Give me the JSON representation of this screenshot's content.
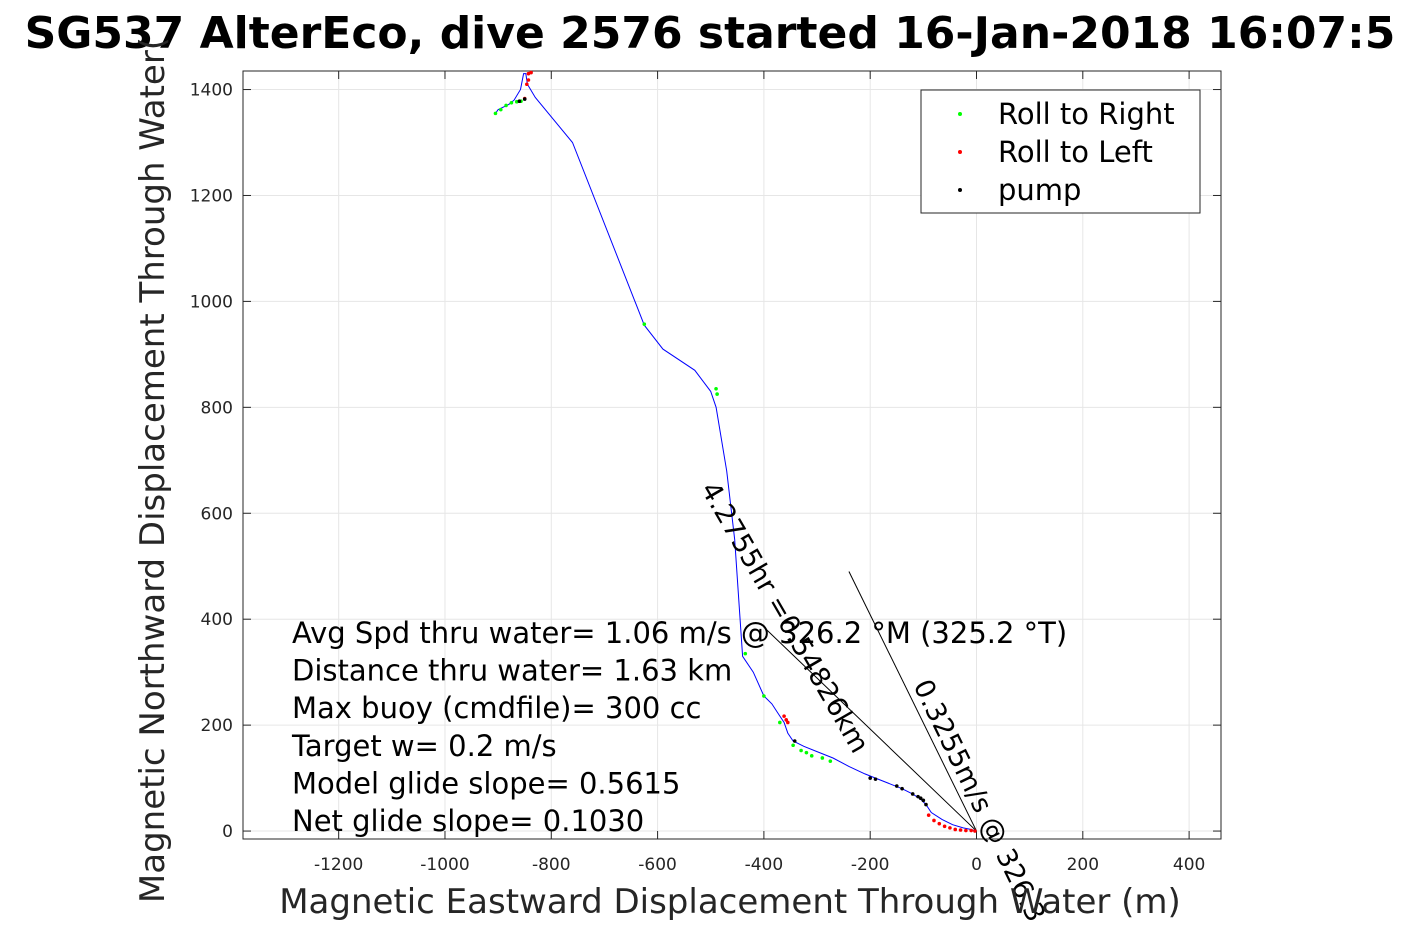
{
  "chart_data": {
    "type": "scatter",
    "title": "SG537 AlterEco, dive 2576 started 16-Jan-2018 16:07:5",
    "xlabel": "Magnetic Eastward Displacement Through Water (m)",
    "ylabel": "Magnetic Northward Displacement Through Water(",
    "xlim": [
      -1380,
      460
    ],
    "ylim": [
      -15,
      1435
    ],
    "xticks": [
      -1200,
      -1000,
      -800,
      -600,
      -400,
      -200,
      0,
      200,
      400
    ],
    "yticks": [
      0,
      200,
      400,
      600,
      800,
      1000,
      1200,
      1400
    ],
    "grid": true,
    "legend": {
      "placement": "top-right",
      "entries": [
        {
          "label": "Roll to Right",
          "color": "#00ff00"
        },
        {
          "label": "Roll to Left",
          "color": "#ff0000"
        },
        {
          "label": "pump",
          "color": "#000000"
        }
      ]
    },
    "track": {
      "name": "track",
      "color": "#0000ff",
      "x": [
        0,
        -10,
        -25,
        -45,
        -65,
        -85,
        -95,
        -105,
        -120,
        -140,
        -165,
        -190,
        -210,
        -240,
        -270,
        -300,
        -325,
        -345,
        -355,
        -362,
        -372,
        -385,
        -400,
        -420,
        -440,
        -455,
        -470,
        -490,
        -500,
        -530,
        -590,
        -625,
        -760,
        -830,
        -845,
        -848,
        -852,
        -858,
        -870,
        -880,
        -900,
        -905
      ],
      "y": [
        0,
        3,
        6,
        12,
        22,
        35,
        50,
        60,
        70,
        80,
        90,
        100,
        108,
        122,
        138,
        150,
        160,
        170,
        185,
        205,
        220,
        240,
        255,
        300,
        330,
        550,
        680,
        800,
        830,
        870,
        910,
        955,
        1300,
        1385,
        1410,
        1430,
        1430,
        1400,
        1380,
        1372,
        1362,
        1355
      ]
    },
    "roll_right": {
      "x": [
        -905,
        -895,
        -885,
        -875,
        -865,
        -857,
        -625,
        -490,
        -488,
        -435,
        -400,
        -370,
        -345,
        -330,
        -320,
        -310,
        -290,
        -275
      ],
      "y": [
        1355,
        1362,
        1370,
        1375,
        1377,
        1378,
        957,
        835,
        825,
        335,
        255,
        205,
        162,
        152,
        148,
        142,
        138,
        132
      ]
    },
    "roll_left": {
      "x": [
        -850,
        -843,
        -838,
        -843,
        -846,
        -362,
        -358,
        -355,
        -90,
        -80,
        -70,
        -60,
        -50,
        -40,
        -30,
        -20,
        -10,
        -3
      ],
      "y": [
        1383,
        1430,
        1432,
        1418,
        1410,
        217,
        210,
        205,
        30,
        20,
        14,
        9,
        6,
        3,
        2,
        1,
        1,
        0
      ]
    },
    "pump": {
      "x": [
        -860,
        -850,
        -342,
        -200,
        -190,
        -150,
        -140,
        -120,
        -110,
        -105,
        -100,
        -95
      ],
      "y": [
        1378,
        1382,
        170,
        100,
        98,
        85,
        80,
        70,
        65,
        62,
        58,
        50
      ]
    },
    "current_vectors": [
      {
        "x": [
          0,
          -240
        ],
        "y": [
          0,
          490
        ]
      },
      {
        "x": [
          0,
          -400
        ],
        "y": [
          0,
          385
        ]
      }
    ],
    "rotated_labels": [
      {
        "text": "0.3255m/s @ 326.3",
        "x": -10,
        "y": 50,
        "angle": -296
      },
      {
        "text": "4.2755hr =0.54826km",
        "x": -375,
        "y": 395,
        "angle": -300
      }
    ],
    "annotation_lines": [
      "Avg Spd thru water=  1.06 m/s @ 326.2 °M (325.2 °T)",
      "Distance thru water=  1.63 km",
      "Max buoy (cmdfile)= 300 cc",
      "Target w= 0.2 m/s",
      "Model glide slope= 0.5615",
      "Net glide slope= 0.1030"
    ]
  }
}
